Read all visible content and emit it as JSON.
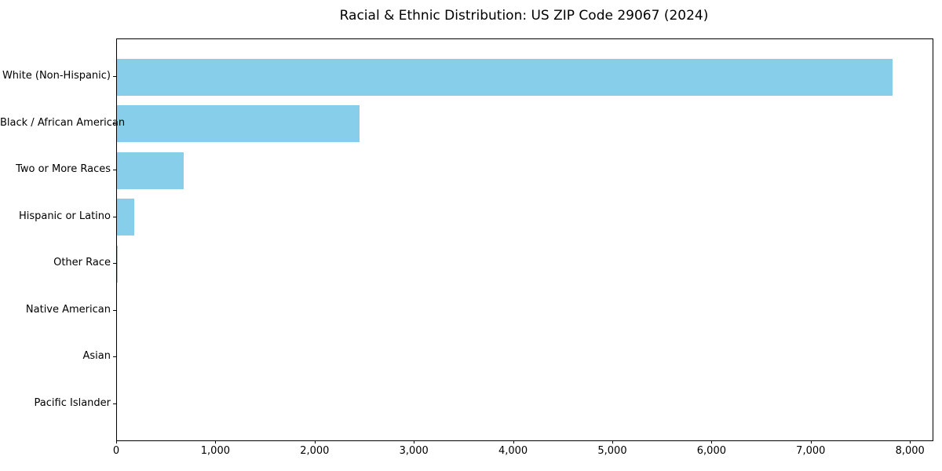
{
  "chart_data": {
    "type": "bar",
    "orientation": "horizontal",
    "title": "Racial & Ethnic Distribution: US ZIP Code 29067 (2024)",
    "categories": [
      "White (Non-Hispanic)",
      "Black / African American",
      "Two or More Races",
      "Hispanic or Latino",
      "Other Race",
      "Native American",
      "Asian",
      "Pacific Islander"
    ],
    "values": [
      7820,
      2445,
      670,
      172,
      10,
      0,
      0,
      0
    ],
    "xlabel": "",
    "ylabel": "",
    "xlim": [
      0,
      8220
    ],
    "xticks": [
      0,
      1000,
      2000,
      3000,
      4000,
      5000,
      6000,
      7000,
      8000
    ],
    "xtick_labels": [
      "0",
      "1,000",
      "2,000",
      "3,000",
      "4,000",
      "5,000",
      "6,000",
      "7,000",
      "8,000"
    ],
    "bar_color": "#87CEEB",
    "axis_color": "#000000",
    "background_color": "#ffffff",
    "grid": false,
    "legend": null
  }
}
